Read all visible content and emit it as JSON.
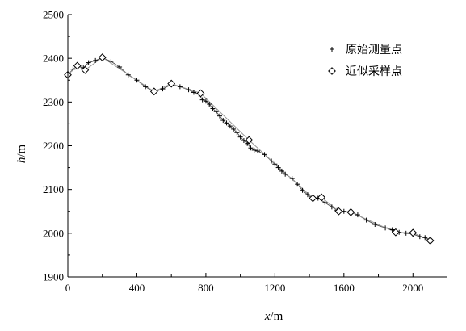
{
  "chart_data": {
    "type": "line",
    "xlabel_var": "x",
    "xlabel_unit": "/m",
    "ylabel_var": "h",
    "ylabel_unit": "/m",
    "xlim": [
      0,
      2200
    ],
    "ylim": [
      1900,
      2500
    ],
    "xticks": [
      0,
      400,
      800,
      1200,
      1600,
      2000
    ],
    "yticks": [
      1900,
      2000,
      2100,
      2200,
      2300,
      2400,
      2500
    ],
    "legend_position": "top-right",
    "grid": false,
    "series": [
      {
        "name": "原始测量点",
        "marker": "plus",
        "color": "#000000",
        "x": [
          0,
          30,
          55,
          90,
          120,
          160,
          200,
          250,
          300,
          350,
          400,
          450,
          500,
          550,
          600,
          650,
          700,
          730,
          760,
          780,
          800,
          820,
          840,
          860,
          880,
          900,
          920,
          940,
          960,
          980,
          1000,
          1020,
          1040,
          1060,
          1080,
          1100,
          1140,
          1180,
          1200,
          1220,
          1240,
          1260,
          1300,
          1330,
          1360,
          1390,
          1420,
          1450,
          1490,
          1530,
          1560,
          1600,
          1640,
          1680,
          1730,
          1780,
          1840,
          1880,
          1920,
          1960,
          2000,
          2040,
          2070,
          2100
        ],
        "y": [
          2362,
          2375,
          2383,
          2378,
          2390,
          2395,
          2401,
          2393,
          2380,
          2362,
          2350,
          2335,
          2323,
          2330,
          2340,
          2335,
          2328,
          2322,
          2318,
          2305,
          2302,
          2295,
          2285,
          2278,
          2268,
          2258,
          2252,
          2245,
          2238,
          2230,
          2220,
          2212,
          2205,
          2195,
          2190,
          2188,
          2180,
          2165,
          2158,
          2150,
          2142,
          2135,
          2125,
          2112,
          2098,
          2088,
          2078,
          2080,
          2070,
          2060,
          2052,
          2050,
          2048,
          2042,
          2030,
          2020,
          2012,
          2008,
          2002,
          2000,
          1998,
          1992,
          1990,
          1985
        ]
      },
      {
        "name": "近似采样点",
        "marker": "diamond",
        "color": "#000000",
        "x": [
          0,
          55,
          100,
          200,
          500,
          600,
          770,
          1050,
          1420,
          1470,
          1570,
          1640,
          1900,
          2000,
          2100
        ],
        "y": [
          2362,
          2383,
          2373,
          2402,
          2324,
          2342,
          2320,
          2213,
          2080,
          2082,
          2050,
          2048,
          2002,
          2001,
          1983
        ]
      }
    ]
  }
}
